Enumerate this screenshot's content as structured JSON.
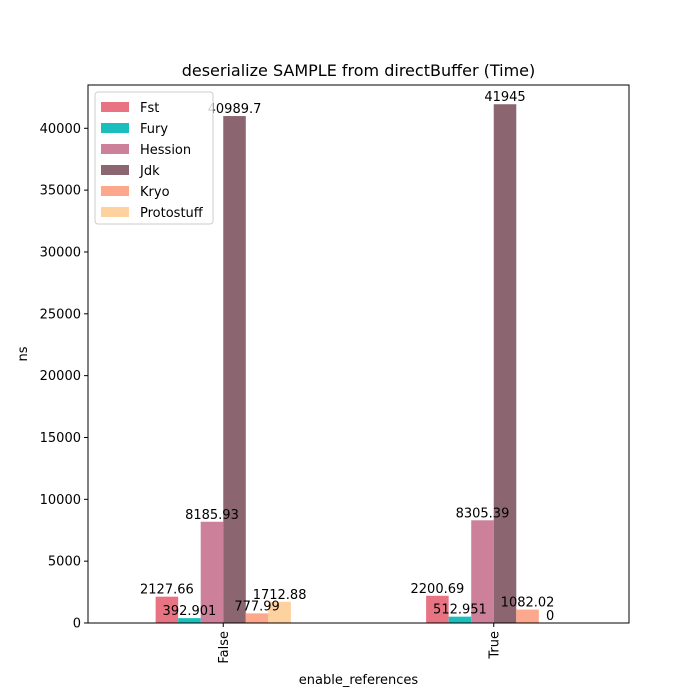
{
  "chart_data": {
    "type": "bar",
    "title": "deserialize SAMPLE from directBuffer (Time)",
    "xlabel": "enable_references",
    "ylabel": "ns",
    "categories": [
      "False",
      "True"
    ],
    "ylim": [
      0,
      43500
    ],
    "yticks": [
      0,
      5000,
      10000,
      15000,
      20000,
      25000,
      30000,
      35000,
      40000
    ],
    "legend_position": "top-left",
    "series": [
      {
        "name": "Fst",
        "color": "#e87382",
        "values": [
          2127.66,
          2200.69
        ],
        "labels": [
          "2127.66",
          "2200.69"
        ]
      },
      {
        "name": "Fury",
        "color": "#1abfbd",
        "values": [
          392.901,
          512.951
        ],
        "labels": [
          "392.901",
          "512.951"
        ]
      },
      {
        "name": "Hession",
        "color": "#cd8099",
        "values": [
          8185.93,
          8305.39
        ],
        "labels": [
          "8185.93",
          "8305.39"
        ]
      },
      {
        "name": "Jdk",
        "color": "#8b6670",
        "values": [
          40989.7,
          41945
        ],
        "labels": [
          "40989.7",
          "41945"
        ]
      },
      {
        "name": "Kryo",
        "color": "#fda78d",
        "values": [
          777.99,
          1082.02
        ],
        "labels": [
          "777.99",
          "1082.02"
        ]
      },
      {
        "name": "Protostuff",
        "color": "#fdd29f",
        "values": [
          1712.88,
          0
        ],
        "labels": [
          "1712.88",
          "0"
        ]
      }
    ]
  }
}
